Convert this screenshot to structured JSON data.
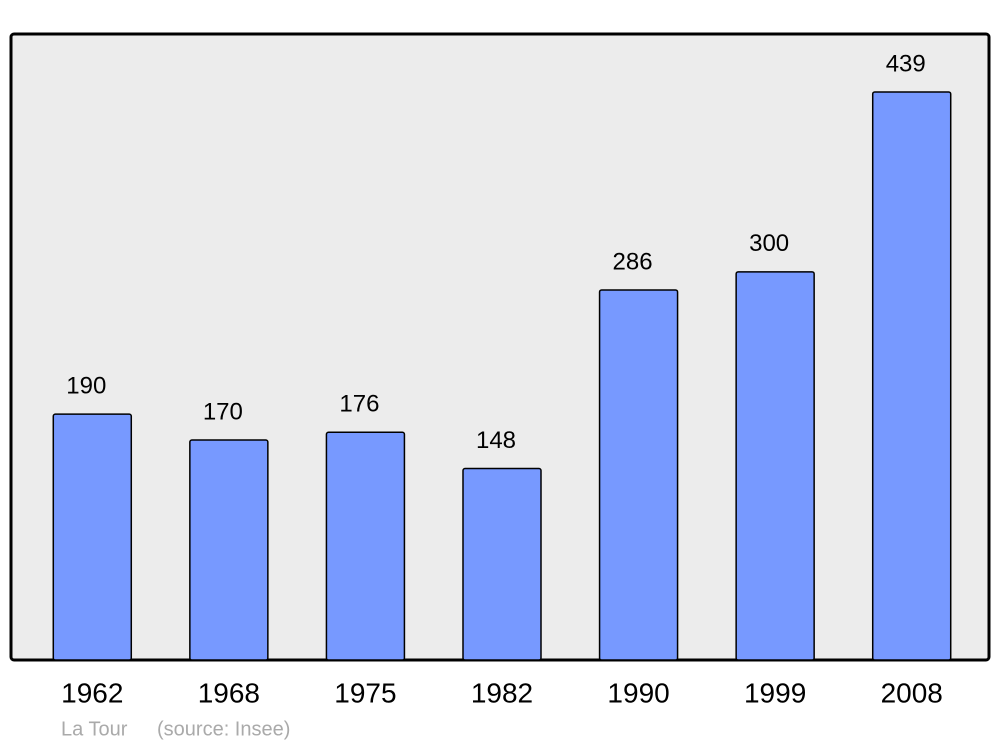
{
  "chart_data": {
    "type": "bar",
    "title": "La Tour",
    "source": "(source: Insee)",
    "categories": [
      "1962",
      "1968",
      "1975",
      "1982",
      "1990",
      "1999",
      "2008"
    ],
    "values": [
      190,
      170,
      176,
      148,
      286,
      300,
      439
    ],
    "color": "#7799ff"
  }
}
